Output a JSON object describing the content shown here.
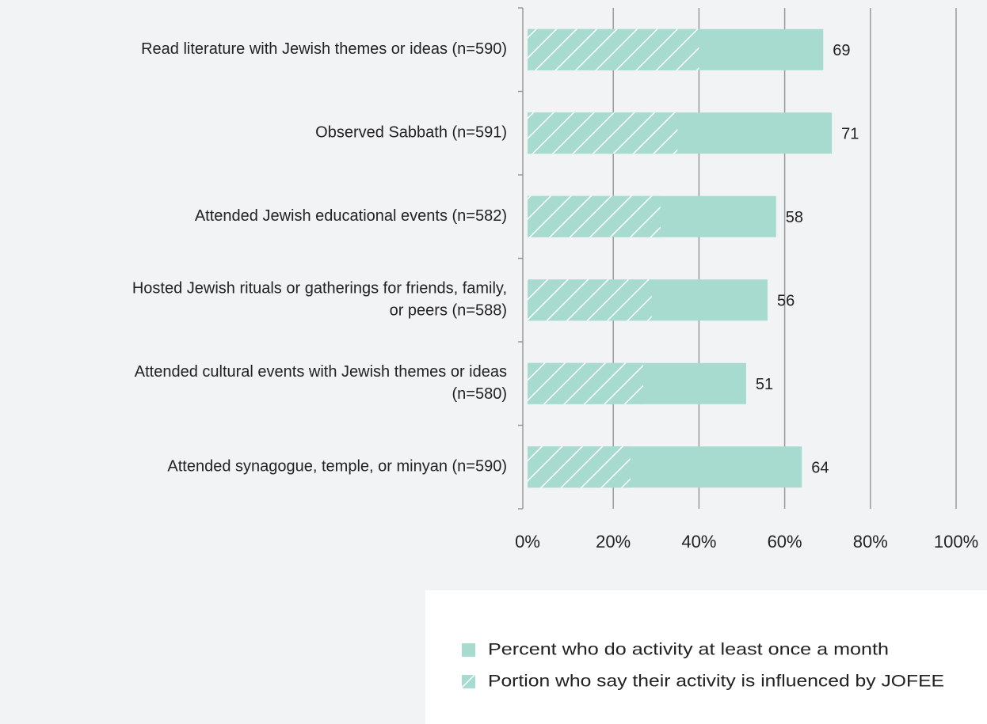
{
  "chart_data": {
    "type": "bar",
    "orientation": "horizontal",
    "categories": [
      [
        "Read literature with Jewish themes or ideas (n=590)"
      ],
      [
        "Observed Sabbath (n=591)"
      ],
      [
        "Attended Jewish educational events (n=582)"
      ],
      [
        "Hosted Jewish rituals or gatherings for friends, family,",
        "or peers (n=588)"
      ],
      [
        "Attended cultural events with Jewish themes or ideas",
        "(n=580)"
      ],
      [
        "Attended synagogue, temple, or minyan (n=590)"
      ]
    ],
    "series": [
      {
        "name": "Percent who do activity at least once a month",
        "color": "#a8dbd0",
        "pattern": "solid",
        "values": [
          69,
          71,
          58,
          56,
          51,
          64
        ],
        "show_labels": true
      },
      {
        "name": "Portion who say their activity is influenced by JOFEE",
        "color": "#a8dbd0",
        "pattern": "hatch",
        "values": [
          40,
          35,
          31,
          29,
          27,
          24
        ],
        "show_labels": false
      }
    ],
    "xlim": [
      0,
      100
    ],
    "xticks": [
      {
        "value": 0,
        "label": "0%"
      },
      {
        "value": 20,
        "label": "20%"
      },
      {
        "value": 40,
        "label": "40%"
      },
      {
        "value": 60,
        "label": "60%"
      },
      {
        "value": 80,
        "label": "80%"
      },
      {
        "value": 100,
        "label": "100%"
      }
    ],
    "grid": true,
    "overlap": true
  }
}
